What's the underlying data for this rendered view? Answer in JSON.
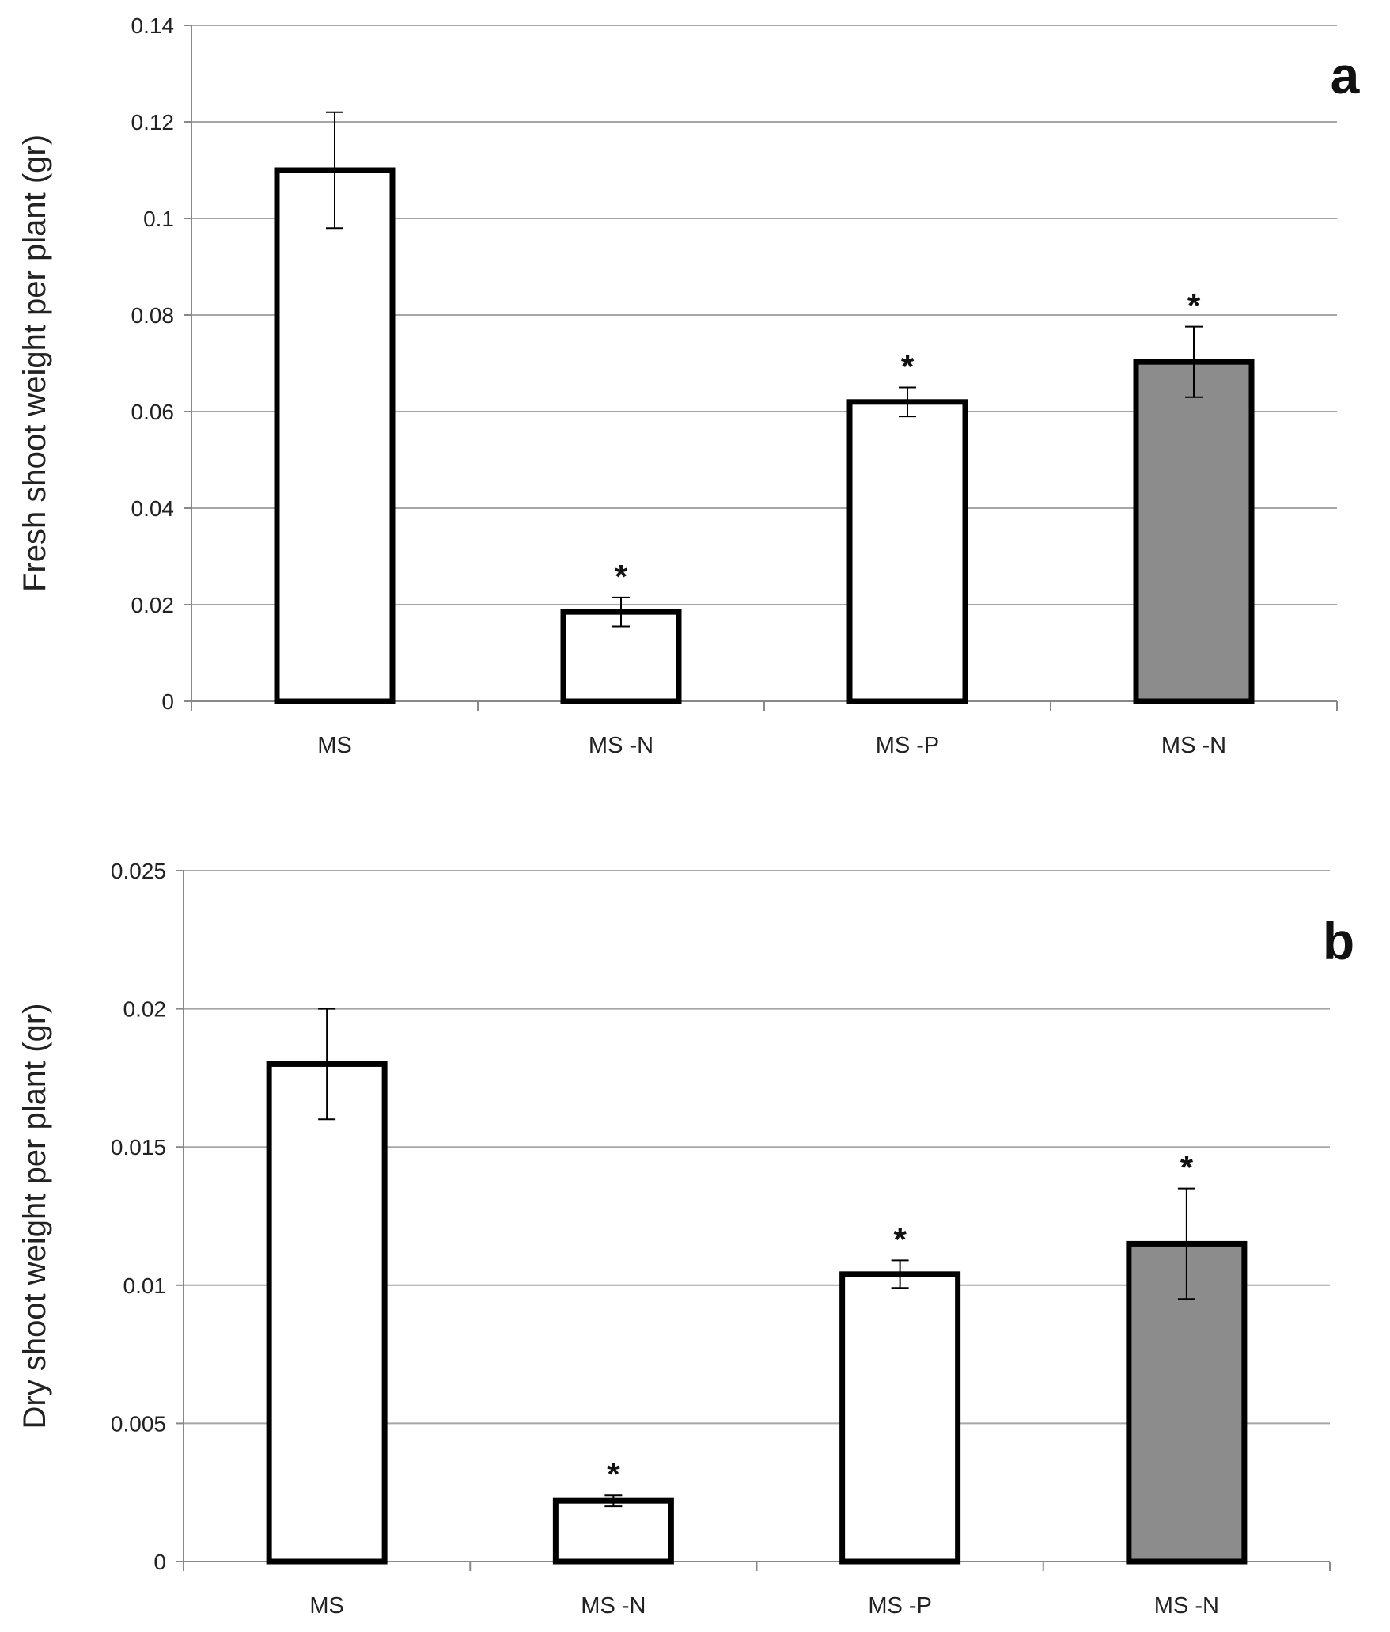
{
  "chart_data": [
    {
      "type": "bar",
      "panel": "a",
      "ylabel": "Fresh shoot weight per plant (gr)",
      "xlabel": "",
      "categories": [
        "MS",
        "MS -N",
        "MS -P",
        "MS -N"
      ],
      "values": [
        0.11,
        0.0185,
        0.062,
        0.0703
      ],
      "errors": [
        0.012,
        0.003,
        0.003,
        0.0073
      ],
      "significance": [
        "",
        "*",
        "*",
        "*"
      ],
      "fills": [
        "#ffffff",
        "#ffffff",
        "#ffffff",
        "#8c8c8c"
      ],
      "ylim": [
        0,
        0.14
      ],
      "yticks": [
        0,
        0.02,
        0.04,
        0.06,
        0.08,
        0.1,
        0.12,
        0.14
      ],
      "ytick_labels": [
        "0",
        "0.02",
        "0.04",
        "0.06",
        "0.08",
        "0.1",
        "0.12",
        "0.14"
      ],
      "grid": true
    },
    {
      "type": "bar",
      "panel": "b",
      "ylabel": "Dry shoot weight per plant (gr)",
      "xlabel": "",
      "categories": [
        "MS",
        "MS -N",
        "MS -P",
        "MS -N"
      ],
      "values": [
        0.018,
        0.0022,
        0.0104,
        0.0115
      ],
      "errors": [
        0.002,
        0.0002,
        0.0005,
        0.002
      ],
      "significance": [
        "",
        "*",
        "*",
        "*"
      ],
      "fills": [
        "#ffffff",
        "#ffffff",
        "#ffffff",
        "#8c8c8c"
      ],
      "ylim": [
        0,
        0.025
      ],
      "yticks": [
        0,
        0.005,
        0.01,
        0.015,
        0.02,
        0.025
      ],
      "ytick_labels": [
        "0",
        "0.005",
        "0.01",
        "0.015",
        "0.02",
        "0.025"
      ],
      "grid": true
    }
  ]
}
